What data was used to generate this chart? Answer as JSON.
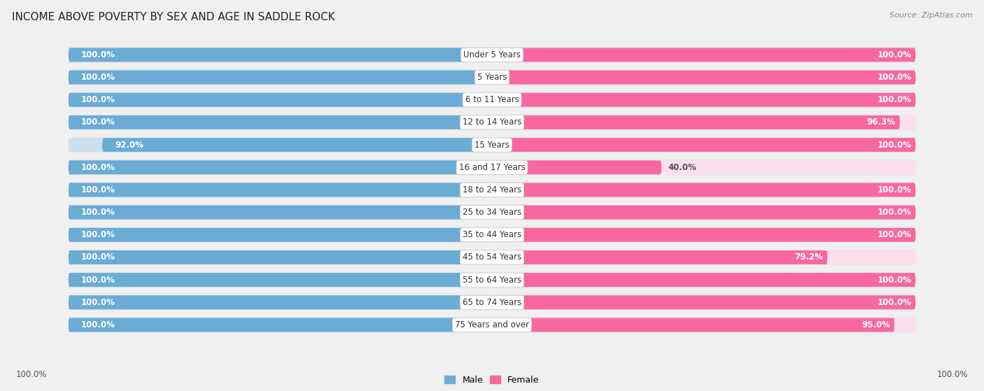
{
  "title": "INCOME ABOVE POVERTY BY SEX AND AGE IN SADDLE ROCK",
  "source": "Source: ZipAtlas.com",
  "categories": [
    "Under 5 Years",
    "5 Years",
    "6 to 11 Years",
    "12 to 14 Years",
    "15 Years",
    "16 and 17 Years",
    "18 to 24 Years",
    "25 to 34 Years",
    "35 to 44 Years",
    "45 to 54 Years",
    "55 to 64 Years",
    "65 to 74 Years",
    "75 Years and over"
  ],
  "male_values": [
    100.0,
    100.0,
    100.0,
    100.0,
    92.0,
    100.0,
    100.0,
    100.0,
    100.0,
    100.0,
    100.0,
    100.0,
    100.0
  ],
  "female_values": [
    100.0,
    100.0,
    100.0,
    96.3,
    100.0,
    40.0,
    100.0,
    100.0,
    100.0,
    79.2,
    100.0,
    100.0,
    95.0
  ],
  "male_color": "#6aacd5",
  "female_color": "#f768a1",
  "male_light_color": "#cde0f0",
  "female_light_color": "#fce0ee",
  "row_bg_color": "#e8e8e8",
  "background_color": "#f0f0f0",
  "title_fontsize": 11,
  "label_fontsize": 8.5,
  "value_fontsize": 8.5,
  "bar_height": 0.62,
  "legend_labels": [
    "Male",
    "Female"
  ]
}
